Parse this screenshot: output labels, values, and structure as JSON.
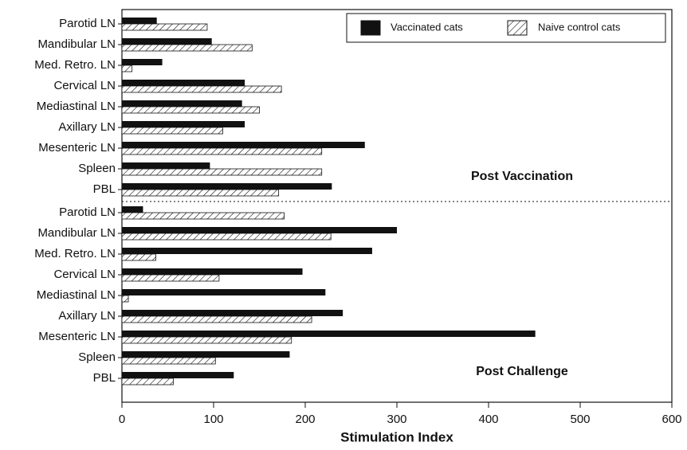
{
  "chart_data": {
    "type": "bar",
    "orientation": "horizontal",
    "xlabel": "Stimulation Index",
    "xlim": [
      0,
      600
    ],
    "xticks": [
      0,
      100,
      200,
      300,
      400,
      500,
      600
    ],
    "legend": "upper right",
    "series": [
      {
        "name": "Vaccinated cats",
        "color": "#111111",
        "hatch": false
      },
      {
        "name": "Naive control cats",
        "color": "#111111",
        "hatch": true
      }
    ],
    "panels": [
      {
        "annotation": "Post Vaccination",
        "categories": [
          "Parotid LN",
          "Mandibular LN",
          "Med. Retro. LN",
          "Cervical LN",
          "Mediastinal LN",
          "Axillary LN",
          "Mesenteric LN",
          "Spleen",
          "PBL"
        ],
        "series": [
          {
            "values": [
              38,
              98,
              44,
              134,
              131,
              134,
              265,
              96,
              229
            ]
          },
          {
            "values": [
              93,
              142,
              11,
              174,
              150,
              110,
              218,
              218,
              171
            ]
          }
        ]
      },
      {
        "annotation": "Post Challenge",
        "categories": [
          "Parotid LN",
          "Mandibular LN",
          "Med. Retro. LN",
          "Cervical LN",
          "Mediastinal LN",
          "Axillary LN",
          "Mesenteric LN",
          "Spleen",
          "PBL"
        ],
        "series": [
          {
            "values": [
              23,
              300,
              273,
              197,
              222,
              241,
              451,
              183,
              122
            ]
          },
          {
            "values": [
              177,
              228,
              37,
              106,
              7,
              207,
              185,
              102,
              56
            ]
          }
        ]
      }
    ]
  }
}
